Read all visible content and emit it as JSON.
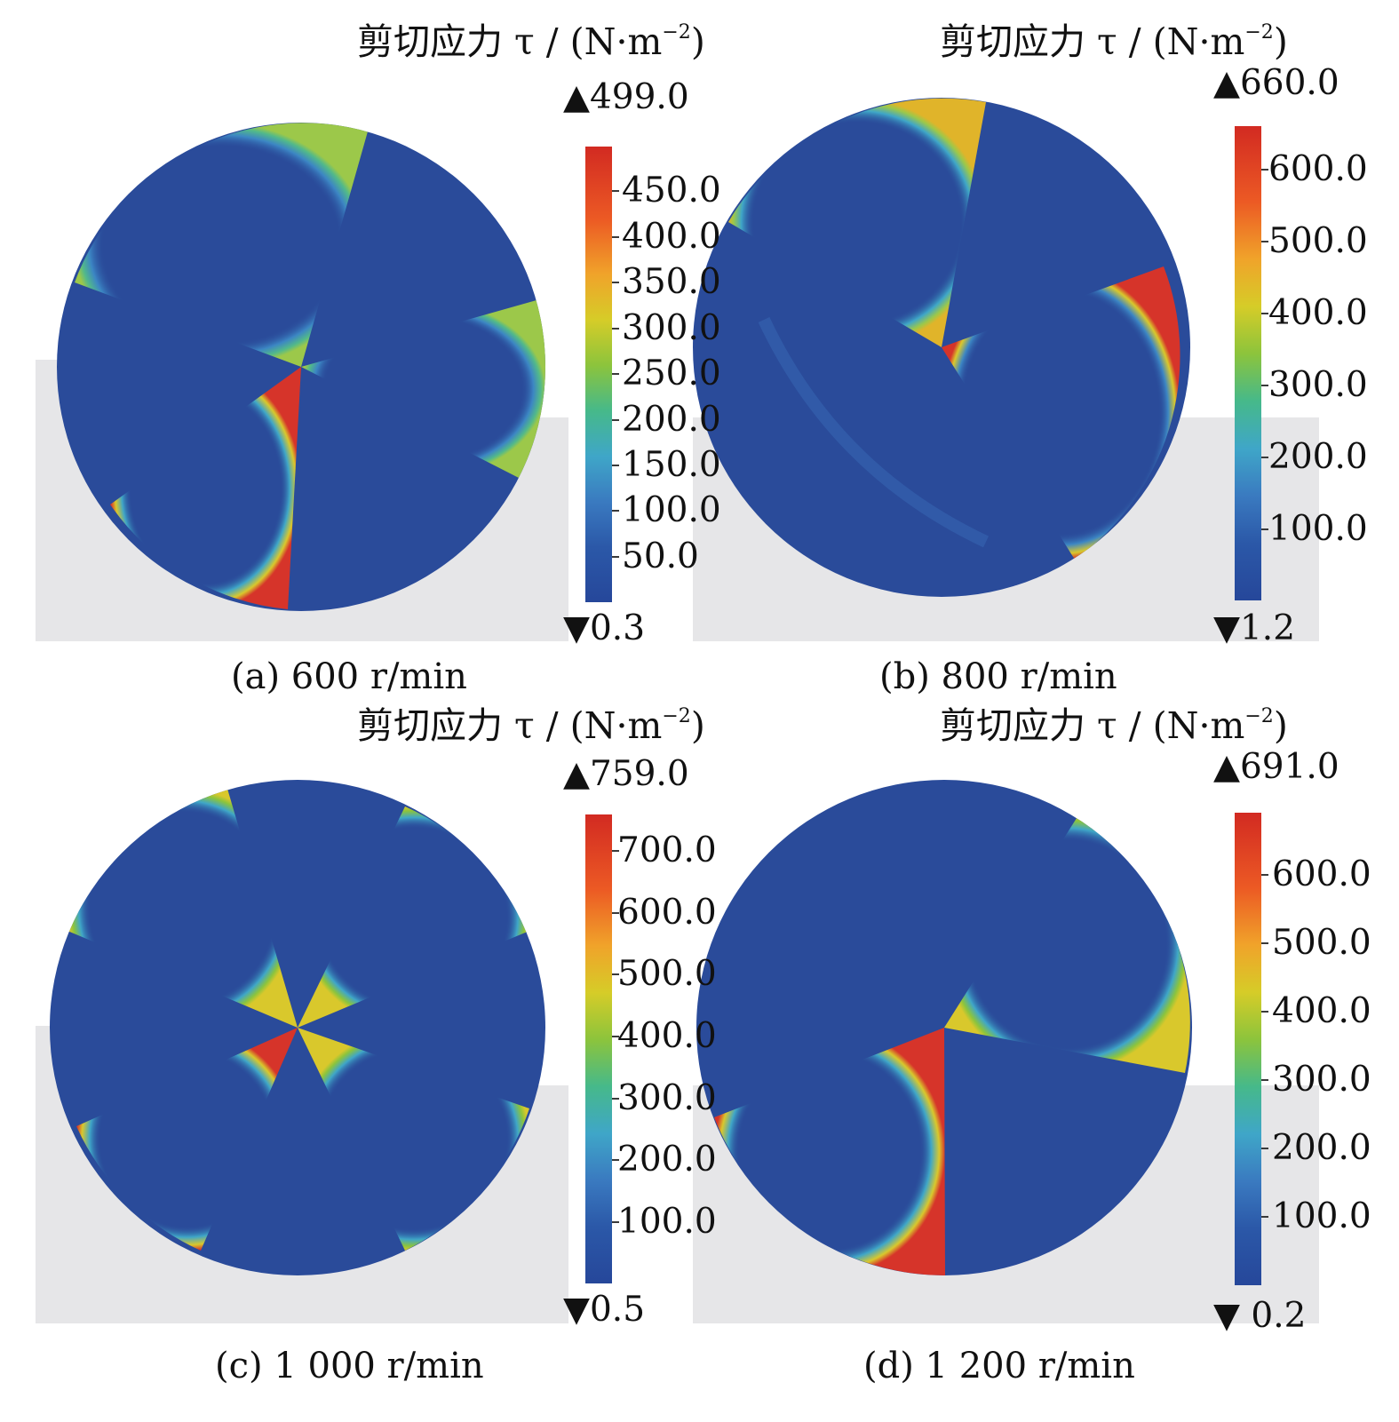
{
  "panels": [
    {
      "id": "a",
      "caption": "(a) 600 r/min",
      "unit_title": "剪切应力 τ / (N·m",
      "unit_exp": "−2",
      "unit_close": ")",
      "max_label": "▲499.0",
      "min_label": "▼0.3",
      "max_value": 499.0,
      "min_value": 0.3,
      "ticks": [
        "450.0",
        "400.0",
        "350.0",
        "300.0",
        "250.0",
        "200.0",
        "150.0",
        "100.0",
        "50.0"
      ],
      "tick_values": [
        450,
        400,
        350,
        300,
        250,
        200,
        150,
        100,
        50
      ]
    },
    {
      "id": "b",
      "caption": "(b) 800 r/min",
      "unit_title": "剪切应力 τ / (N·m",
      "unit_exp": "−2",
      "unit_close": ")",
      "max_label": "▲660.0",
      "min_label": "▼1.2",
      "max_value": 660.0,
      "min_value": 1.2,
      "ticks": [
        "600.0",
        "500.0",
        "400.0",
        "300.0",
        "200.0",
        "100.0"
      ],
      "tick_values": [
        600,
        500,
        400,
        300,
        200,
        100
      ]
    },
    {
      "id": "c",
      "caption": "(c) 1 000 r/min",
      "unit_title": "剪切应力 τ / (N·m",
      "unit_exp": "−2",
      "unit_close": ")",
      "max_label": "▲759.0",
      "min_label": "▼0.5",
      "max_value": 759.0,
      "min_value": 0.5,
      "ticks": [
        "700.0",
        "600.0",
        "500.0",
        "400.0",
        "300.0",
        "200.0",
        "100.0"
      ],
      "tick_values": [
        700,
        600,
        500,
        400,
        300,
        200,
        100
      ]
    },
    {
      "id": "d",
      "caption": "(d) 1 200 r/min",
      "unit_title": "剪切应力 τ / (N·m",
      "unit_exp": "−2",
      "unit_close": ")",
      "max_label": "▲691.0",
      "min_label": "▼ 0.2",
      "max_value": 691.0,
      "min_value": 0.2,
      "ticks": [
        "600.0",
        "500.0",
        "400.0",
        "300.0",
        "200.0",
        "100.0"
      ],
      "tick_values": [
        600,
        500,
        400,
        300,
        200,
        100
      ]
    }
  ],
  "colors": {
    "disc": "#2a4b9a",
    "background_plane": "#e6e6e8",
    "high": "#d22a22",
    "low": "#26479a"
  }
}
